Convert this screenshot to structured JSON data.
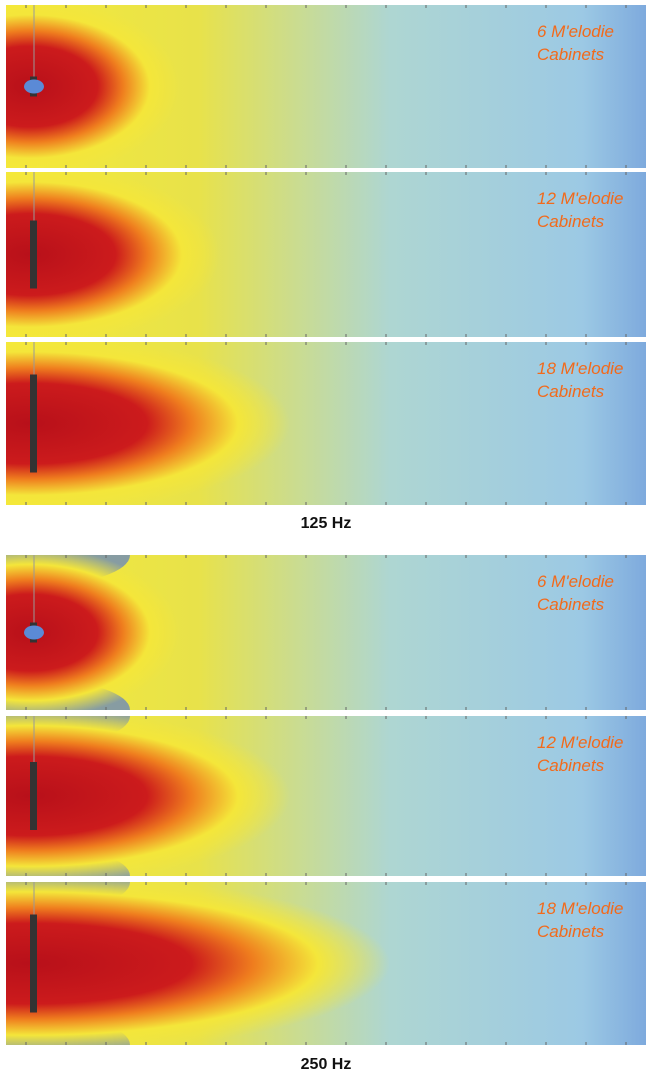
{
  "groups": [
    {
      "caption": "125 Hz",
      "panels": [
        {
          "label": [
            "6 M'elodie",
            "Cabinets"
          ]
        },
        {
          "label": [
            "12 M'elodie",
            "Cabinets"
          ]
        },
        {
          "label": [
            "18 M'elodie",
            "Cabinets"
          ]
        }
      ]
    },
    {
      "caption": "250 Hz",
      "panels": [
        {
          "label": [
            "6 M'elodie",
            "Cabinets"
          ]
        },
        {
          "label": [
            "12 M'elodie",
            "Cabinets"
          ]
        },
        {
          "label": [
            "18 M'elodie",
            "Cabinets"
          ]
        }
      ]
    }
  ]
}
